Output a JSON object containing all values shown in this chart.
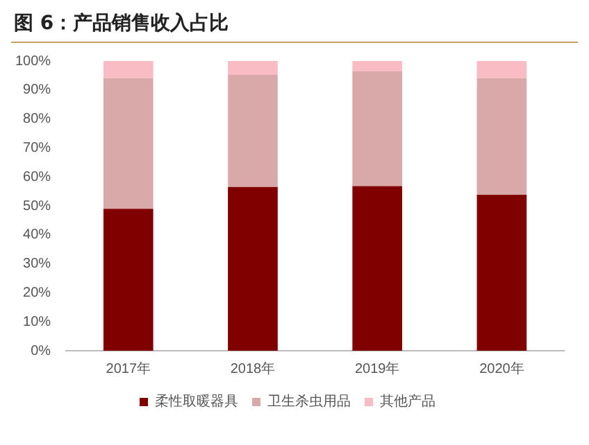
{
  "chart_data": {
    "type": "bar",
    "title": "图 6：产品销售收入占比",
    "stacked": true,
    "categories": [
      "2017年",
      "2018年",
      "2019年",
      "2020年"
    ],
    "series": [
      {
        "name": "柔性取暖器具",
        "color": "#800000",
        "values": [
          49.0,
          56.5,
          56.8,
          53.8
        ]
      },
      {
        "name": "卫生杀虫用品",
        "color": "#d9a9a9",
        "values": [
          45.1,
          38.7,
          39.6,
          40.3
        ]
      },
      {
        "name": "其他产品",
        "color": "#f9bcc5",
        "values": [
          5.9,
          4.8,
          3.6,
          5.9
        ]
      }
    ],
    "ylim": [
      0,
      100
    ],
    "yticks": [
      {
        "value": 0,
        "label": "0%"
      },
      {
        "value": 10,
        "label": "10%"
      },
      {
        "value": 20,
        "label": "20%"
      },
      {
        "value": 30,
        "label": "30%"
      },
      {
        "value": 40,
        "label": "40%"
      },
      {
        "value": 50,
        "label": "50%"
      },
      {
        "value": 60,
        "label": "60%"
      },
      {
        "value": 70,
        "label": "70%"
      },
      {
        "value": 80,
        "label": "80%"
      },
      {
        "value": 90,
        "label": "90%"
      },
      {
        "value": 100,
        "label": "100%"
      }
    ],
    "grid": false,
    "legend": "bottom"
  }
}
